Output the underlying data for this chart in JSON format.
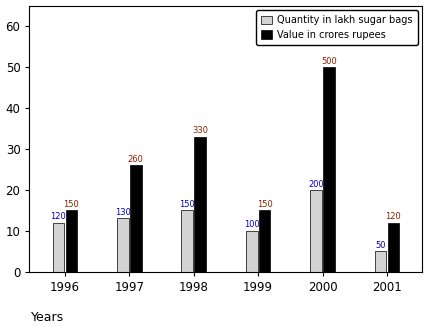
{
  "years": [
    "1996",
    "1997",
    "1998",
    "1999",
    "2000",
    "2001"
  ],
  "quantity": [
    12,
    13,
    15,
    10,
    20,
    5
  ],
  "value_scaled": [
    15,
    26,
    33,
    15,
    50,
    12
  ],
  "quantity_labels": [
    120,
    130,
    150,
    100,
    200,
    50
  ],
  "value_labels": [
    150,
    260,
    330,
    150,
    500,
    120
  ],
  "value_color": "#000000",
  "xlabel": "Years",
  "ylim": [
    0,
    65
  ],
  "yticks": [
    0,
    10,
    20,
    30,
    40,
    50,
    60
  ],
  "legend_quantity": "Quantity in lakh sugar bags",
  "legend_value": "Value in crores rupees",
  "bar_width": 0.18,
  "label_color_quantity": "#0000bb",
  "label_color_value": "#8b2000",
  "figsize": [
    4.28,
    3.27
  ],
  "dpi": 100
}
